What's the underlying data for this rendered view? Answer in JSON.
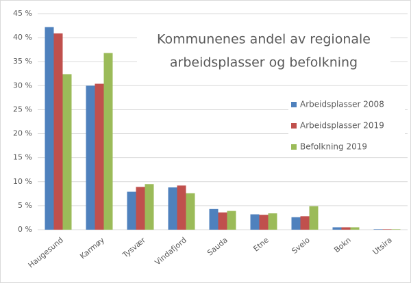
{
  "chart_data": {
    "type": "bar",
    "title": [
      "Kommunenes  andel av regionale",
      "arbeidsplasser  og befolkning"
    ],
    "categories": [
      "Haugesund",
      "Karmøy",
      "Tysvær",
      "Vindafjord",
      "Sauda",
      "Etne",
      "Sveio",
      "Bokn",
      "Utsira"
    ],
    "series": [
      {
        "name": "Arbeidsplasser 2008",
        "color": "#4f81bd",
        "values": [
          42.2,
          30.0,
          7.9,
          8.8,
          4.3,
          3.2,
          2.6,
          0.5,
          0.1
        ]
      },
      {
        "name": "Arbeidsplasser 2019",
        "color": "#c0504d",
        "values": [
          40.9,
          30.4,
          8.9,
          9.2,
          3.6,
          3.1,
          2.8,
          0.5,
          0.1
        ]
      },
      {
        "name": "Befolkning 2019",
        "color": "#9bbb59",
        "values": [
          32.4,
          36.8,
          9.5,
          7.6,
          3.9,
          3.4,
          4.9,
          0.5,
          0.1
        ]
      }
    ],
    "ylim": [
      0,
      45
    ],
    "yticks": [
      {
        "value": 0,
        "label": "0 %"
      },
      {
        "value": 5,
        "label": "5 %"
      },
      {
        "value": 10,
        "label": "10 %"
      },
      {
        "value": 15,
        "label": "15 %"
      },
      {
        "value": 20,
        "label": "20 %"
      },
      {
        "value": 25,
        "label": "25 %"
      },
      {
        "value": 30,
        "label": "30 %"
      },
      {
        "value": 35,
        "label": "35 %"
      },
      {
        "value": 40,
        "label": "40 %"
      },
      {
        "value": 45,
        "label": "45 %"
      }
    ],
    "grid": true,
    "legend": "right"
  }
}
